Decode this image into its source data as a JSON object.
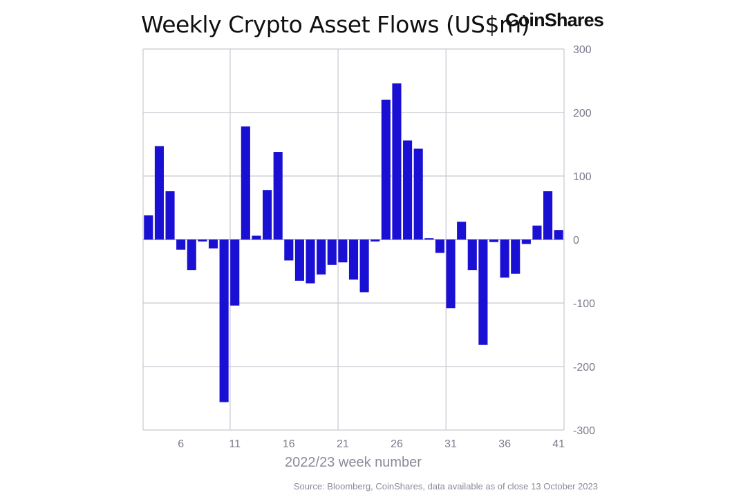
{
  "header": {
    "title": "Weekly Crypto Asset Flows (US$m)",
    "brand": "CoinShares"
  },
  "footer": {
    "source": "Source: Bloomberg, CoinShares, data available as of close 13 October 2023"
  },
  "colors": {
    "bar": "#1a10d4",
    "grid": "#c8c8d0",
    "text": "#7b7b8c"
  },
  "chart_data": {
    "type": "bar",
    "title": "Weekly Crypto Asset Flows (US$m)",
    "xlabel": "2022/23 week number",
    "ylabel": "",
    "ylim": [
      -300,
      300
    ],
    "y_ticks": [
      300,
      200,
      100,
      0,
      -100,
      -200,
      -300
    ],
    "y_tick_labels": [
      "300",
      "200",
      "100",
      "0",
      "-100",
      "-200",
      "-300"
    ],
    "y_axis_position": "right",
    "x_ticks": [
      6,
      11,
      16,
      21,
      26,
      31,
      36,
      41
    ],
    "x_tick_labels": [
      "6",
      "11",
      "16",
      "21",
      "26",
      "31",
      "36",
      "41"
    ],
    "x_range": [
      2.5,
      41.5
    ],
    "grid": true,
    "categories": [
      3,
      4,
      5,
      6,
      7,
      8,
      9,
      10,
      11,
      12,
      13,
      14,
      15,
      16,
      17,
      18,
      19,
      20,
      21,
      22,
      23,
      24,
      25,
      26,
      27,
      28,
      29,
      30,
      31,
      32,
      33,
      34,
      35,
      36,
      37,
      38,
      39,
      40,
      41
    ],
    "values": [
      38,
      147,
      76,
      -16,
      -48,
      -3,
      -14,
      -256,
      -104,
      178,
      6,
      78,
      138,
      -33,
      -65,
      -69,
      -55,
      -40,
      -36,
      -63,
      -83,
      -3,
      220,
      246,
      156,
      143,
      2,
      -21,
      -108,
      28,
      -48,
      -166,
      -4,
      -60,
      -54,
      -7,
      22,
      76,
      15
    ]
  }
}
